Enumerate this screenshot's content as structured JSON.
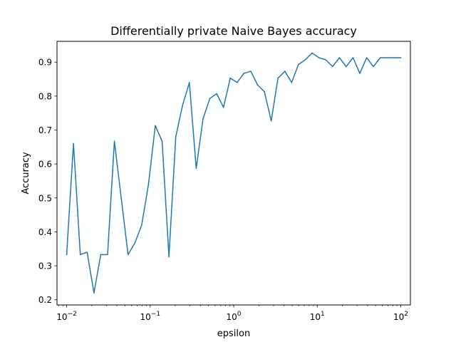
{
  "chart_data": {
    "type": "line",
    "title": "Differentially private Naive Bayes accuracy",
    "xlabel": "epsilon",
    "ylabel": "Accuracy",
    "xscale": "log",
    "xlim": [
      0.00766,
      130.5
    ],
    "ylim": [
      0.1847,
      0.9613
    ],
    "grid": false,
    "x_ticks": [
      {
        "value": 0.01,
        "base": "10",
        "exp": "−2"
      },
      {
        "value": 0.1,
        "base": "10",
        "exp": "−1"
      },
      {
        "value": 1,
        "base": "10",
        "exp": "0"
      },
      {
        "value": 10,
        "base": "10",
        "exp": "1"
      },
      {
        "value": 100,
        "base": "10",
        "exp": "2"
      }
    ],
    "y_ticks": [
      {
        "value": 0.2,
        "label": "0.2"
      },
      {
        "value": 0.3,
        "label": "0.3"
      },
      {
        "value": 0.4,
        "label": "0.4"
      },
      {
        "value": 0.5,
        "label": "0.5"
      },
      {
        "value": 0.6,
        "label": "0.6"
      },
      {
        "value": 0.7,
        "label": "0.7"
      },
      {
        "value": 0.8,
        "label": "0.8"
      },
      {
        "value": 0.9,
        "label": "0.9"
      }
    ],
    "series": [
      {
        "color": "#1f77b4",
        "x": [
          0.01,
          0.01207,
          0.01456,
          0.01758,
          0.02121,
          0.0256,
          0.03089,
          0.03728,
          0.04498,
          0.05429,
          0.06551,
          0.07906,
          0.09541,
          0.1151,
          0.1389,
          0.1677,
          0.2024,
          0.2442,
          0.2947,
          0.3556,
          0.4292,
          0.5179,
          0.6251,
          0.7543,
          0.9103,
          1.099,
          1.326,
          1.6,
          1.931,
          2.33,
          2.812,
          3.393,
          4.095,
          4.942,
          5.964,
          7.197,
          8.685,
          10.48,
          12.65,
          15.26,
          18.42,
          22.23,
          26.83,
          32.37,
          39.07,
          47.15,
          56.9,
          68.66,
          82.86,
          100
        ],
        "y": [
          0.333,
          0.66,
          0.333,
          0.34,
          0.22,
          0.333,
          0.333,
          0.667,
          0.5,
          0.333,
          0.367,
          0.42,
          0.54,
          0.713,
          0.667,
          0.327,
          0.68,
          0.773,
          0.84,
          0.587,
          0.733,
          0.793,
          0.807,
          0.767,
          0.853,
          0.84,
          0.867,
          0.873,
          0.833,
          0.813,
          0.727,
          0.853,
          0.873,
          0.84,
          0.893,
          0.907,
          0.927,
          0.913,
          0.907,
          0.887,
          0.913,
          0.887,
          0.913,
          0.867,
          0.913,
          0.887,
          0.913,
          0.913,
          0.913,
          0.913
        ]
      }
    ]
  }
}
